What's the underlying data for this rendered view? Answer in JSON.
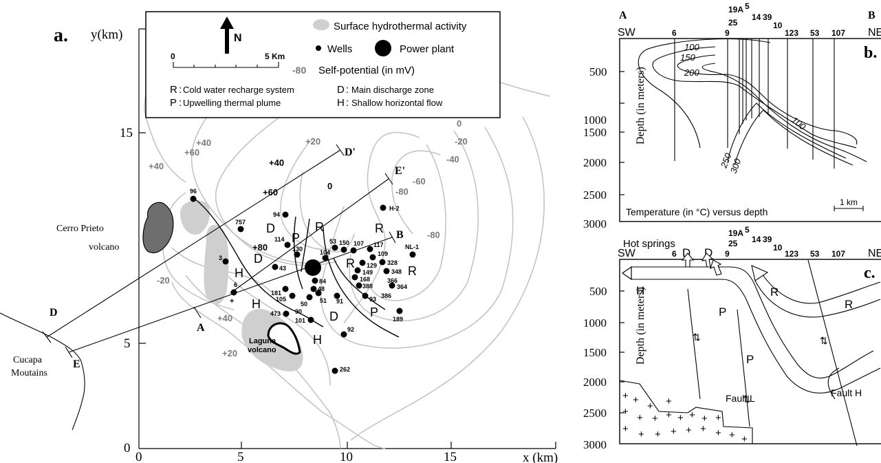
{
  "panel_a": {
    "panel_label": "a.",
    "y_axis_label": "y(km)",
    "x_axis_label": "x (km)",
    "y_ticks": [
      "0",
      "5",
      "15"
    ],
    "x_ticks": [
      "0",
      "5",
      "10",
      "15"
    ],
    "north_label": "N",
    "scale_start": "0",
    "scale_end": "5 Km",
    "legend": {
      "hydro": "Surface hydrothermal activity",
      "wells": "Wells",
      "power_plant": "Power plant",
      "sp_value": "-80",
      "sp_label": "Self-potential (in mV)",
      "r_key": "R",
      "r_desc": "Cold water recharge system",
      "d_key": "D",
      "d_desc": "Main discharge zone",
      "p_key": "P",
      "p_desc": "Upwelling thermal plume",
      "h_key": "H",
      "h_desc": "Shallow horizontal flow"
    },
    "place_labels": {
      "cerro_prieto_1": "Cerro Prieto",
      "cerro_prieto_2": "volcano",
      "laguna_1": "Laguna",
      "laguna_2": "volcano",
      "cucapa_1": "Cucapa",
      "cucapa_2": "Moutains"
    },
    "profile_labels": {
      "a": "A",
      "b": "B",
      "d": "D",
      "d_prime": "D'",
      "e": "E",
      "e_prime": "E'"
    },
    "contour_labels": {
      "p40_a": "+40",
      "p60_a": "+60",
      "p40_b": "+40",
      "p20_a": "+20",
      "p40_c": "+40",
      "p60_b": "+60",
      "p80": "+80",
      "zero_a": "0",
      "zero_b": "0",
      "m20_a": "-20",
      "m20_b": "-20",
      "m40": "-40",
      "m60": "-60",
      "m80_a": "-80",
      "m80_b": "-80",
      "p40_d": "+40",
      "p20_b": "+20"
    },
    "well_labels": {
      "w96": "96",
      "w757": "757",
      "w94": "94",
      "w3": "3",
      "w114": "114",
      "w130": "130",
      "w43": "43",
      "w6": "6",
      "w181": "181",
      "w105": "105",
      "w473": "473",
      "w90": "90",
      "w101": "101",
      "w50": "50",
      "w51": "51",
      "w48": "48",
      "w84": "84",
      "w53": "53",
      "w150": "150",
      "w104": "104",
      "w107": "107",
      "w117": "117",
      "w109": "109",
      "w129": "129",
      "w149": "149",
      "w168": "168",
      "w388": "388",
      "w93": "93",
      "w328": "328",
      "w348": "348",
      "w366": "366",
      "w364": "364",
      "w386": "386",
      "w91": "91",
      "w92": "92",
      "w262": "262",
      "w189": "189",
      "h2": "H-2",
      "nl1": "NL-1"
    },
    "flow_labels": {
      "d1": "D",
      "d2": "D",
      "p1": "P",
      "r1": "R",
      "r2": "R",
      "r3": "R",
      "r4": "R",
      "h1": "H",
      "h2": "H",
      "h3": "H",
      "d3": "D",
      "p2": "P"
    }
  },
  "panel_b": {
    "label": "b.",
    "section_start": "A",
    "sw": "SW",
    "ne": "NE",
    "section_end": "B",
    "wells_top": {
      "w6": "6",
      "w9": "9",
      "w25": "25",
      "w19a": "19A",
      "w5": "5",
      "w14": "14",
      "w39": "39",
      "w10": "10",
      "w123": "123",
      "w53": "53",
      "w107": "107"
    },
    "y_axis_label": "Depth (in meters)",
    "y_ticks": [
      "500",
      "1000",
      "1500",
      "2000",
      "2500",
      "3000"
    ],
    "isotherms": {
      "i100a": "100",
      "i150": "150",
      "i200": "200",
      "i100b": "100",
      "i250": "250",
      "i300": "300"
    },
    "caption": "Temperature (in °C) versus depth",
    "scale": "1 km"
  },
  "panel_c": {
    "label": "c.",
    "hot_springs": "Hot springs",
    "sw": "SW",
    "ne": "NE",
    "wells_top": {
      "w6": "6",
      "w9": "9",
      "w25": "25",
      "w19a": "19A",
      "w5": "5",
      "w14": "14",
      "w39": "39",
      "w10": "10",
      "w123": "123",
      "w53": "53",
      "w107": "107"
    },
    "y_axis_label": "Depth (in meters)",
    "y_ticks": [
      "500",
      "1000",
      "1500",
      "2000",
      "2500",
      "3000"
    ],
    "flow_labels": {
      "d1": "D",
      "d2": "D",
      "h": "H",
      "r1": "R",
      "r2": "R",
      "p1": "P",
      "p2": "P"
    },
    "fault_l": "Fault L",
    "fault_h": "Fault H"
  },
  "colors": {
    "contour": "#c4c4c4",
    "hydro": "#cfcfcf",
    "volcano": "#6e6e6e",
    "sp_label": "#7a7a7a"
  }
}
